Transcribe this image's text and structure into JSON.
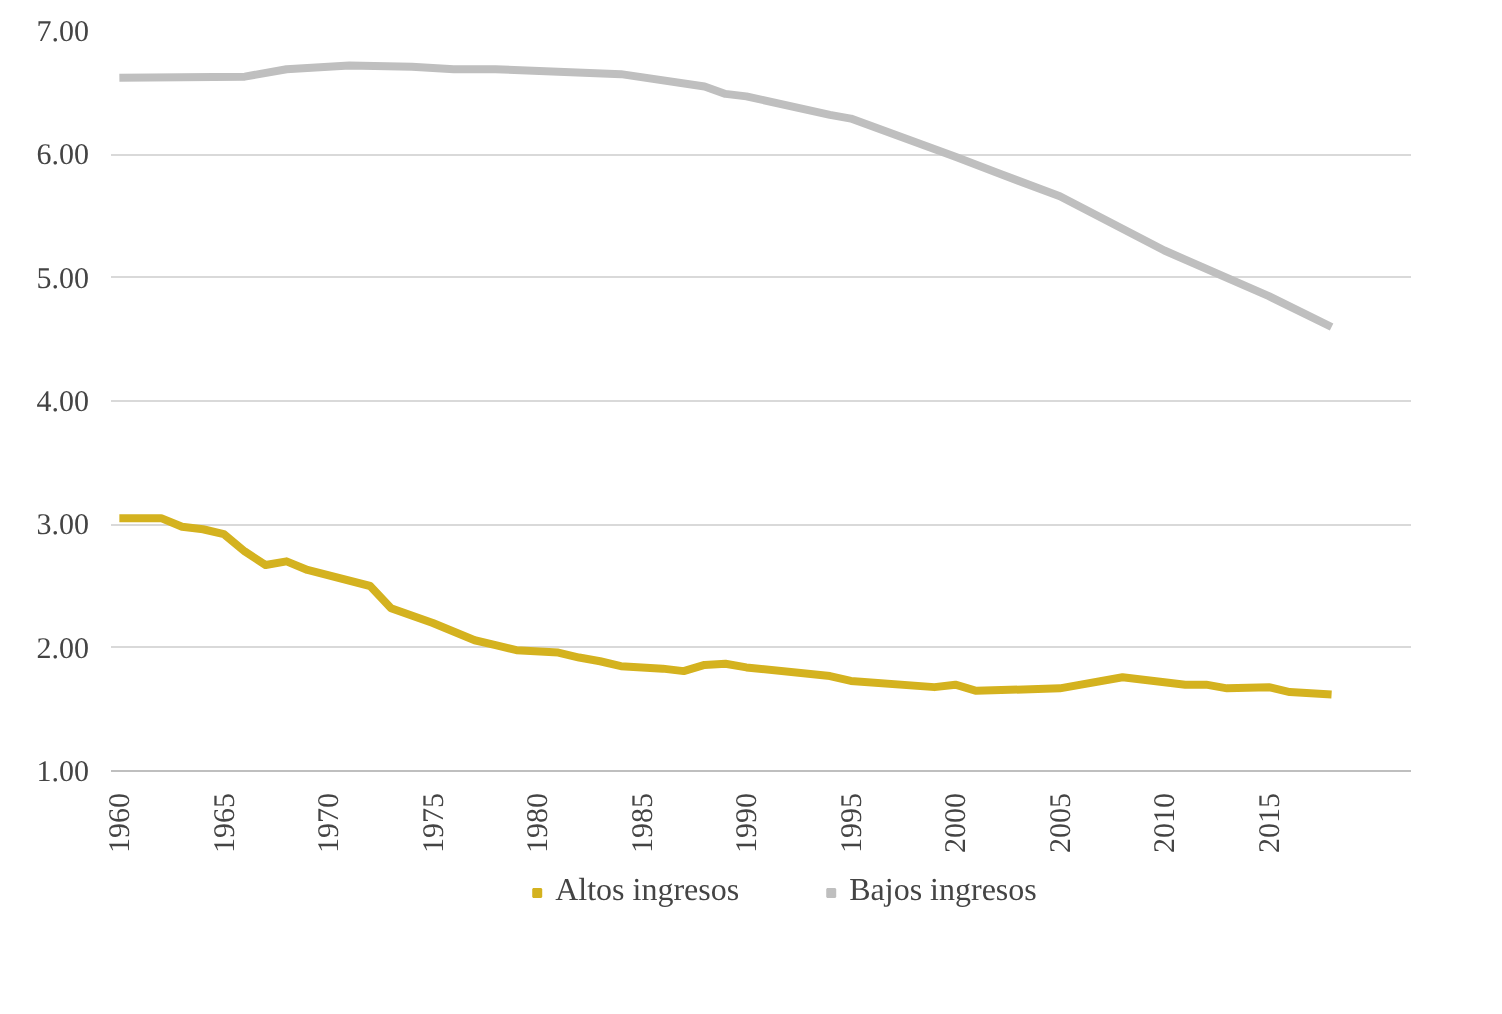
{
  "chart_data": {
    "type": "line",
    "legend": "bottom",
    "grid": "y",
    "xlim": [
      1959.6,
      2021.8
    ],
    "ylim": [
      1.0,
      7.0
    ],
    "xticks": [
      1960,
      1965,
      1970,
      1975,
      1980,
      1985,
      1990,
      1995,
      2000,
      2005,
      2010,
      2015
    ],
    "yticks": [
      {
        "value": 1,
        "label": "1.00"
      },
      {
        "value": 2,
        "label": "2.00"
      },
      {
        "value": 3,
        "label": "3.00"
      },
      {
        "value": 4,
        "label": "4.00"
      },
      {
        "value": 5,
        "label": "5.00"
      },
      {
        "value": 6,
        "label": "6.00"
      },
      {
        "value": 7,
        "label": "7.00"
      }
    ],
    "series": [
      {
        "name": "Altos ingresos",
        "color": "#d4b21f",
        "x": [
          1960,
          1962,
          1963,
          1964,
          1965,
          1966,
          1967,
          1968,
          1969,
          1972,
          1973,
          1975,
          1977,
          1978,
          1979,
          1981,
          1982,
          1983,
          1984,
          1986,
          1987,
          1988,
          1989,
          1990,
          1994,
          1995,
          1999,
          2000,
          2001,
          2005,
          2008,
          2011,
          2012,
          2013,
          2015,
          2016,
          2018
        ],
        "values": [
          3.05,
          3.05,
          2.98,
          2.96,
          2.92,
          2.78,
          2.67,
          2.7,
          2.63,
          2.5,
          2.32,
          2.2,
          2.06,
          2.02,
          1.98,
          1.96,
          1.92,
          1.89,
          1.85,
          1.83,
          1.81,
          1.86,
          1.87,
          1.84,
          1.77,
          1.73,
          1.68,
          1.7,
          1.65,
          1.67,
          1.76,
          1.7,
          1.7,
          1.67,
          1.68,
          1.64,
          1.62
        ]
      },
      {
        "name": "Bajos ingresos",
        "color": "#bfbfbf",
        "x": [
          1960,
          1966,
          1968,
          1971,
          1974,
          1976,
          1978,
          1984,
          1988,
          1989,
          1990,
          1994,
          1995,
          2000,
          2002,
          2005,
          2010,
          2015,
          2018
        ],
        "values": [
          6.62,
          6.63,
          6.69,
          6.72,
          6.71,
          6.69,
          6.69,
          6.65,
          6.55,
          6.49,
          6.47,
          6.32,
          6.29,
          5.98,
          5.85,
          5.66,
          5.22,
          4.85,
          4.6
        ]
      }
    ]
  }
}
